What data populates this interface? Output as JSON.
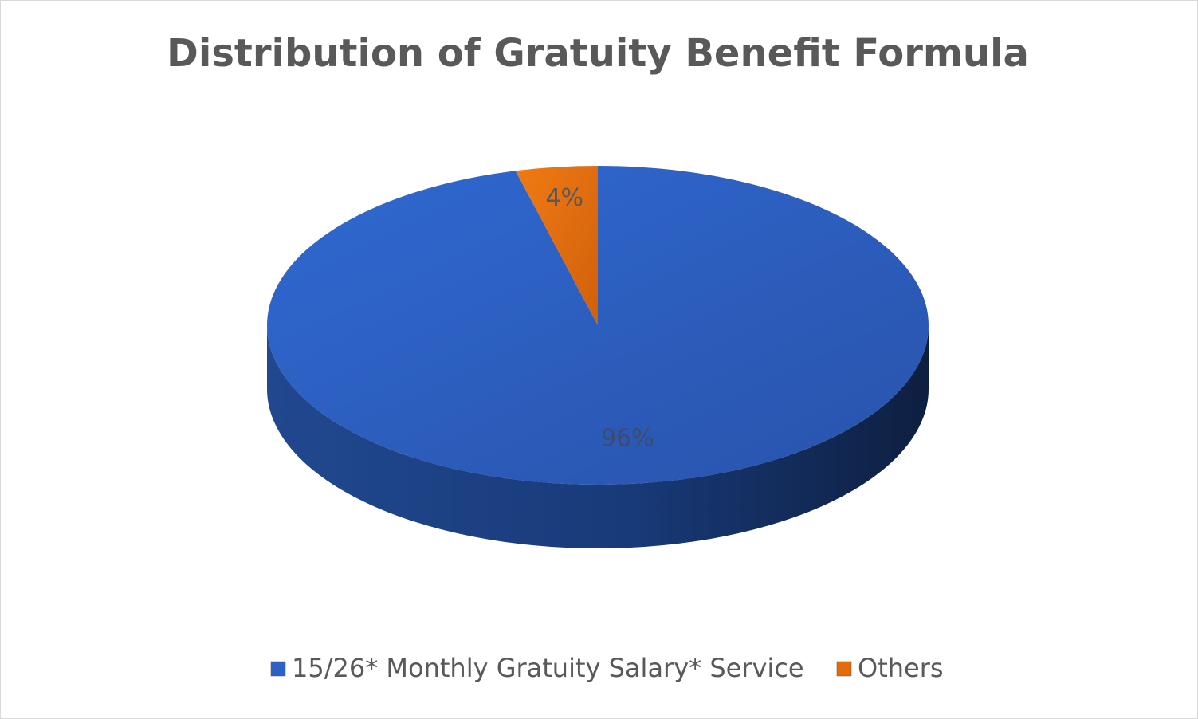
{
  "chart_data": {
    "type": "pie",
    "title": "Distribution of Gratuity Benefit Formula",
    "categories": [
      "15/26* Monthly Gratuity Salary* Service",
      "Others"
    ],
    "values": [
      96,
      4
    ],
    "value_labels": [
      "96%",
      "4%"
    ],
    "colors": [
      "#2c62c6",
      "#e46c0a"
    ],
    "legend": "bottom"
  }
}
